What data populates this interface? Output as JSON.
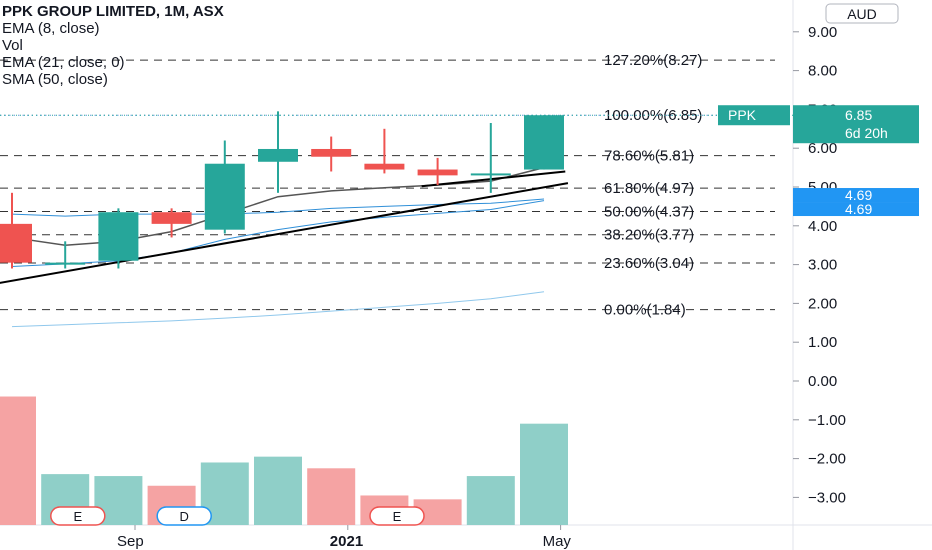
{
  "legend": {
    "title": "PPK GROUP LIMITED, 1M, ASX",
    "ema8": "EMA (8, close)",
    "vol": "Vol",
    "ema21": "EMA (21, close, 0)",
    "sma50": "SMA (50, close)"
  },
  "currency_label": "AUD",
  "colors": {
    "up": "#26a69a",
    "down": "#ef5350",
    "up_volume": "#8fcfc8",
    "down_volume": "#f5a3a3",
    "ema_line": "#555555",
    "blue_line": "#2f8fd8",
    "light_blue_line": "#90c8ec",
    "trendline": "#000000",
    "fib_line": "#333333",
    "price_tag": "#26a69a",
    "ema_tag": "#2196f3"
  },
  "chart_data": {
    "type": "candlestick",
    "y_axis": {
      "range": [
        -3.6,
        9.7
      ],
      "ticks": [
        "9.00",
        "8.00",
        "7.00",
        "6.00",
        "5.00",
        "4.00",
        "3.00",
        "2.00",
        "1.00",
        "0.00",
        "−1.00",
        "−2.00",
        "−3.00"
      ],
      "tick_values": [
        9,
        8,
        7,
        6,
        5,
        4,
        3,
        2,
        1,
        0,
        -1,
        -2,
        -3
      ]
    },
    "x_axis": {
      "labels": [
        {
          "text": "Sep",
          "index": 2.5
        },
        {
          "text": "2021",
          "index": 6.5,
          "bold": true
        },
        {
          "text": "May",
          "index": 10.5
        }
      ]
    },
    "candles": [
      {
        "o": 4.05,
        "h": 4.85,
        "l": 2.9,
        "c": 3.05
      },
      {
        "o": 3.0,
        "h": 3.6,
        "l": 2.9,
        "c": 3.05
      },
      {
        "o": 3.1,
        "h": 4.45,
        "l": 2.9,
        "c": 4.35
      },
      {
        "o": 4.35,
        "h": 4.45,
        "l": 3.7,
        "c": 4.05
      },
      {
        "o": 3.9,
        "h": 6.2,
        "l": 3.8,
        "c": 5.6
      },
      {
        "o": 5.65,
        "h": 6.95,
        "l": 4.85,
        "c": 5.98
      },
      {
        "o": 5.98,
        "h": 6.3,
        "l": 5.4,
        "c": 5.78
      },
      {
        "o": 5.6,
        "h": 6.5,
        "l": 5.35,
        "c": 5.45
      },
      {
        "o": 5.45,
        "h": 5.75,
        "l": 5.05,
        "c": 5.3
      },
      {
        "o": 5.3,
        "h": 6.65,
        "l": 4.85,
        "c": 5.35
      },
      {
        "o": 5.45,
        "h": 6.85,
        "l": 5.45,
        "c": 6.85
      }
    ],
    "volume": [
      {
        "v": -0.4,
        "dir": "down"
      },
      {
        "v": -2.4,
        "dir": "up"
      },
      {
        "v": -2.45,
        "dir": "up"
      },
      {
        "v": -2.7,
        "dir": "down"
      },
      {
        "v": -2.1,
        "dir": "up"
      },
      {
        "v": -1.95,
        "dir": "up"
      },
      {
        "v": -2.25,
        "dir": "down"
      },
      {
        "v": -2.95,
        "dir": "down"
      },
      {
        "v": -3.05,
        "dir": "down"
      },
      {
        "v": -2.45,
        "dir": "up"
      },
      {
        "v": -1.1,
        "dir": "up"
      }
    ],
    "ema8": [
      3.7,
      3.5,
      3.6,
      3.85,
      4.3,
      4.75,
      4.9,
      4.98,
      5.05,
      5.15,
      5.5
    ],
    "ema21": [
      4.3,
      4.25,
      4.3,
      4.3,
      4.3,
      4.35,
      4.45,
      4.5,
      4.55,
      4.58,
      4.69
    ],
    "ema21b": [
      2.95,
      3.02,
      3.1,
      3.3,
      3.65,
      3.9,
      4.1,
      4.22,
      4.32,
      4.42,
      4.65
    ],
    "sma50": [
      1.4,
      1.45,
      1.5,
      1.55,
      1.62,
      1.7,
      1.8,
      1.9,
      2.0,
      2.12,
      2.3
    ],
    "trendlines": [
      {
        "from": [
          -0.35,
          2.5
        ],
        "to": [
          10.45,
          5.1
        ]
      },
      {
        "from": [
          7.7,
          5.02
        ],
        "to": [
          10.4,
          5.4
        ]
      }
    ],
    "fib_levels": [
      {
        "label": "127.20%(8.27)",
        "value": 8.27
      },
      {
        "label": "100.00%(6.85)",
        "value": 6.85
      },
      {
        "label": "78.60%(5.81)",
        "value": 5.81
      },
      {
        "label": "61.80%(4.97)",
        "value": 4.97
      },
      {
        "label": "50.00%(4.37)",
        "value": 4.37
      },
      {
        "label": "38.20%(3.77)",
        "value": 3.77
      },
      {
        "label": "23.60%(3.04)",
        "value": 3.04
      },
      {
        "label": "0.00%(1.84)",
        "value": 1.84
      }
    ],
    "price_tag": {
      "symbol": "PPK",
      "value": "6.85",
      "countdown": "6d 20h",
      "price": 6.85
    },
    "ema_tags": [
      {
        "value": "4.69",
        "price": 4.69
      },
      {
        "value": "4.69",
        "price": 4.69
      }
    ],
    "event_markers": [
      {
        "text": "E",
        "index": 1.5
      },
      {
        "text": "D",
        "index": 3.5
      },
      {
        "text": "E",
        "index": 7.5
      }
    ]
  }
}
